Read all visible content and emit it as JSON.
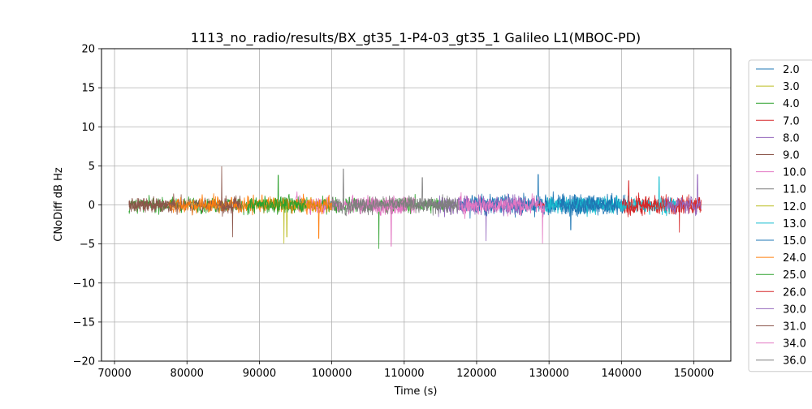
{
  "chart_data": {
    "type": "line",
    "title": "1113_no_radio/results/BX_gt35_1-P4-03_gt35_1 Galileo L1(MBOC-PD)",
    "xlabel": "Time (s)",
    "ylabel": "CNoDiff dB Hz",
    "xlim": [
      68200,
      155100
    ],
    "ylim": [
      -20,
      20
    ],
    "xticks": [
      70000,
      80000,
      90000,
      100000,
      110000,
      120000,
      130000,
      140000,
      150000
    ],
    "xtick_labels": [
      "70000",
      "80000",
      "90000",
      "100000",
      "110000",
      "120000",
      "130000",
      "140000",
      "150000"
    ],
    "yticks": [
      -20,
      -15,
      -10,
      -5,
      0,
      5,
      10,
      15,
      20
    ],
    "ytick_labels": [
      "−20",
      "−15",
      "−10",
      "−5",
      "0",
      "5",
      "10",
      "15",
      "20"
    ],
    "grid": true,
    "legend_position": "outside-right",
    "series": [
      {
        "name": "2.0",
        "color": "#1f77b4",
        "segments": [
          {
            "start": 117500,
            "end": 140500,
            "amp": 1.5
          },
          {
            "start": 118000,
            "end": 140000,
            "amp": 1.2
          }
        ],
        "peak": [
          128500,
          3.9
        ]
      },
      {
        "name": "3.0",
        "color": "#bcbd22",
        "segments": [
          {
            "start": 89500,
            "end": 100000,
            "amp": 1.0
          }
        ],
        "peak": [
          93800,
          -4.1
        ]
      },
      {
        "name": "4.0",
        "color": "#2ca02c",
        "segments": [
          {
            "start": 72000,
            "end": 99500,
            "amp": 1.1
          },
          {
            "start": 99500,
            "end": 115500,
            "amp": 1.2
          }
        ],
        "peak": [
          106500,
          -5.6
        ]
      },
      {
        "name": "7.0",
        "color": "#d62728",
        "segments": [
          {
            "start": 140000,
            "end": 151000,
            "amp": 1.4
          },
          {
            "start": 128000,
            "end": 129500,
            "amp": 0.4
          }
        ],
        "peak": [
          148000,
          -3.5
        ]
      },
      {
        "name": "8.0",
        "color": "#9467bd",
        "segments": [
          {
            "start": 114500,
            "end": 126500,
            "amp": 1.5
          }
        ],
        "peak": [
          121300,
          -4.6
        ]
      },
      {
        "name": "9.0",
        "color": "#8c564b",
        "segments": [
          {
            "start": 72000,
            "end": 87500,
            "amp": 1.1
          }
        ],
        "peak": [
          84800,
          4.9
        ]
      },
      {
        "name": "10.0",
        "color": "#e377c2",
        "segments": [
          {
            "start": 95000,
            "end": 111500,
            "amp": 1.3
          },
          {
            "start": 117500,
            "end": 129500,
            "amp": 1.5
          }
        ],
        "peak": [
          129100,
          -4.9
        ]
      },
      {
        "name": "11.0",
        "color": "#7f7f7f",
        "segments": [
          {
            "start": 99500,
            "end": 117500,
            "amp": 1.2
          }
        ],
        "peak": [
          101600,
          4.6
        ]
      },
      {
        "name": "12.0",
        "color": "#bcbd22",
        "segments": [
          {
            "start": 93000,
            "end": 97000,
            "amp": 0.8
          }
        ],
        "peak": [
          93400,
          -4.9
        ]
      },
      {
        "name": "13.0",
        "color": "#17becf",
        "segments": [
          {
            "start": 129500,
            "end": 147500,
            "amp": 1.3
          }
        ],
        "peak": [
          145200,
          3.6
        ]
      },
      {
        "name": "15.0",
        "color": "#1f77b4",
        "segments": [
          {
            "start": 131500,
            "end": 139500,
            "amp": 1.4
          }
        ],
        "peak": [
          133000,
          -3.2
        ]
      },
      {
        "name": "24.0",
        "color": "#ff7f0e",
        "segments": [
          {
            "start": 77500,
            "end": 100000,
            "amp": 1.3
          }
        ],
        "peak": [
          98200,
          -4.3
        ]
      },
      {
        "name": "25.0",
        "color": "#2ca02c",
        "segments": [
          {
            "start": 88500,
            "end": 96500,
            "amp": 1.2
          }
        ],
        "peak": [
          92600,
          3.8
        ]
      },
      {
        "name": "26.0",
        "color": "#d62728",
        "segments": [
          {
            "start": 140500,
            "end": 151000,
            "amp": 1.3
          }
        ],
        "peak": [
          141000,
          3.1
        ]
      },
      {
        "name": "30.0",
        "color": "#9467bd",
        "segments": [
          {
            "start": 146000,
            "end": 151000,
            "amp": 1.3
          }
        ],
        "peak": [
          150500,
          3.9
        ]
      },
      {
        "name": "31.0",
        "color": "#8c564b",
        "segments": [
          {
            "start": 72000,
            "end": 78500,
            "amp": 1.1
          },
          {
            "start": 84500,
            "end": 87500,
            "amp": 1.3
          }
        ],
        "peak": [
          86300,
          -4.1
        ]
      },
      {
        "name": "34.0",
        "color": "#e377c2",
        "segments": [
          {
            "start": 103500,
            "end": 110500,
            "amp": 1.3
          }
        ],
        "peak": [
          108200,
          -5.3
        ]
      },
      {
        "name": "36.0",
        "color": "#7f7f7f",
        "segments": [
          {
            "start": 103000,
            "end": 117000,
            "amp": 1.1
          }
        ],
        "peak": [
          112500,
          3.5
        ]
      }
    ]
  }
}
